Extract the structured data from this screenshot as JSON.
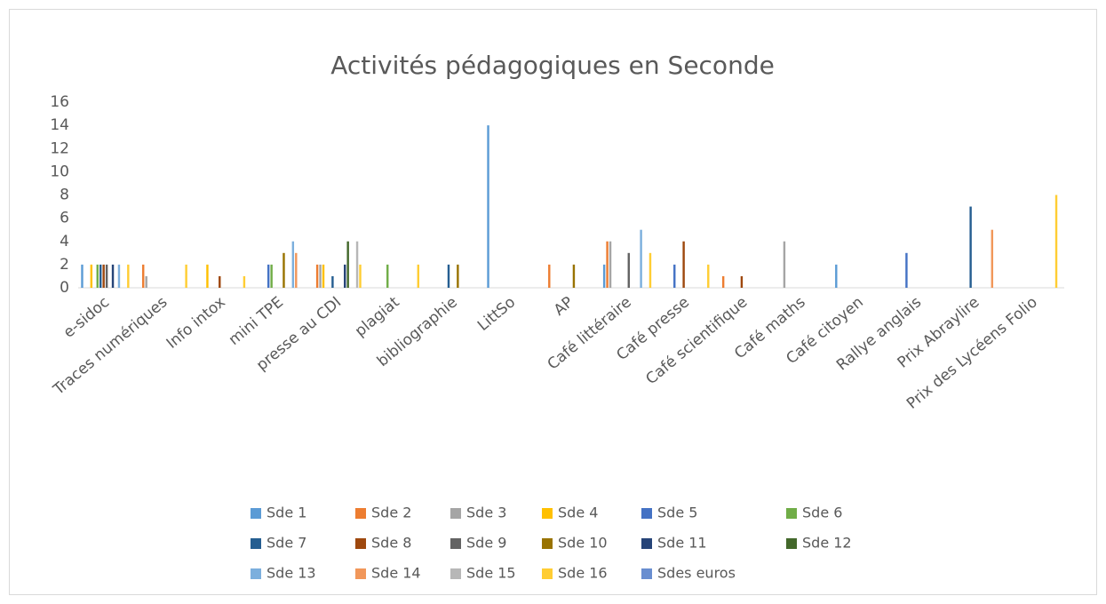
{
  "chart_data": {
    "type": "bar",
    "title": "Activités pédagogiques en Seconde",
    "categories": [
      "e-sidoc",
      "Traces numériques",
      "Info intox",
      "mini TPE",
      "presse au CDI",
      "plagiat",
      "bibliographie",
      "LittSo",
      "AP",
      "Café littéraire",
      "Café presse",
      "Café scientifique",
      "Café maths",
      "Café citoyen",
      "Rallye anglais",
      "Prix Abraylire",
      "Prix des Lycéens Folio"
    ],
    "ylim": [
      0,
      16
    ],
    "yticks": [
      0,
      2,
      4,
      6,
      8,
      10,
      12,
      14,
      16
    ],
    "grid": false,
    "legend": "bottom",
    "series": [
      {
        "name": "Sde 1",
        "color": "#5b9bd5",
        "values": [
          2,
          0,
          0,
          0,
          0,
          0,
          0,
          14,
          0,
          2,
          0,
          0,
          0,
          2,
          0,
          0,
          0
        ]
      },
      {
        "name": "Sde 2",
        "color": "#ed7d31",
        "values": [
          0,
          2,
          0,
          0,
          2,
          0,
          0,
          0,
          2,
          4,
          0,
          1,
          0,
          0,
          0,
          0,
          0
        ]
      },
      {
        "name": "Sde 3",
        "color": "#a5a5a5",
        "values": [
          0,
          1,
          0,
          0,
          2,
          0,
          0,
          0,
          0,
          4,
          0,
          0,
          4,
          0,
          0,
          0,
          0
        ]
      },
      {
        "name": "Sde 4",
        "color": "#ffc000",
        "values": [
          2,
          0,
          2,
          0,
          2,
          0,
          0,
          0,
          0,
          0,
          0,
          0,
          0,
          0,
          0,
          0,
          0
        ]
      },
      {
        "name": "Sde 5",
        "color": "#4472c4",
        "values": [
          0,
          0,
          0,
          2,
          0,
          0,
          0,
          0,
          0,
          0,
          2,
          0,
          0,
          0,
          3,
          0,
          0
        ]
      },
      {
        "name": "Sde 6",
        "color": "#70ad47",
        "values": [
          2,
          0,
          0,
          2,
          0,
          2,
          0,
          0,
          0,
          0,
          0,
          0,
          0,
          0,
          0,
          0,
          0
        ]
      },
      {
        "name": "Sde 7",
        "color": "#255e91",
        "values": [
          2,
          0,
          0,
          0,
          1,
          0,
          2,
          0,
          0,
          0,
          0,
          0,
          0,
          0,
          0,
          7,
          0
        ]
      },
      {
        "name": "Sde 8",
        "color": "#9e480e",
        "values": [
          2,
          0,
          1,
          0,
          0,
          0,
          0,
          0,
          0,
          0,
          4,
          1,
          0,
          0,
          0,
          0,
          0
        ]
      },
      {
        "name": "Sde 9",
        "color": "#636363",
        "values": [
          2,
          0,
          0,
          0,
          0,
          0,
          0,
          0,
          0,
          3,
          0,
          0,
          0,
          0,
          0,
          0,
          0
        ]
      },
      {
        "name": "Sde 10",
        "color": "#997300",
        "values": [
          0,
          0,
          0,
          3,
          0,
          0,
          2,
          0,
          2,
          0,
          0,
          0,
          0,
          0,
          0,
          0,
          0
        ]
      },
      {
        "name": "Sde 11",
        "color": "#264478",
        "values": [
          2,
          0,
          0,
          0,
          2,
          0,
          0,
          0,
          0,
          0,
          0,
          0,
          0,
          0,
          0,
          0,
          0
        ]
      },
      {
        "name": "Sde 12",
        "color": "#43682b",
        "values": [
          0,
          0,
          0,
          0,
          4,
          0,
          0,
          0,
          0,
          0,
          0,
          0,
          0,
          0,
          0,
          0,
          0
        ]
      },
      {
        "name": "Sde 13",
        "color": "#7cafdd",
        "values": [
          2,
          0,
          0,
          4,
          0,
          0,
          0,
          0,
          0,
          5,
          0,
          0,
          0,
          0,
          0,
          0,
          0
        ]
      },
      {
        "name": "Sde 14",
        "color": "#f1975a",
        "values": [
          0,
          0,
          0,
          3,
          0,
          0,
          0,
          0,
          0,
          0,
          0,
          0,
          0,
          0,
          0,
          5,
          0
        ]
      },
      {
        "name": "Sde 15",
        "color": "#b7b7b7",
        "values": [
          0,
          0,
          0,
          0,
          4,
          0,
          0,
          0,
          0,
          0,
          0,
          0,
          0,
          0,
          0,
          0,
          0
        ]
      },
      {
        "name": "Sde 16",
        "color": "#ffcd33",
        "values": [
          2,
          2,
          1,
          0,
          2,
          2,
          0,
          0,
          0,
          3,
          2,
          0,
          0,
          0,
          0,
          0,
          8
        ]
      },
      {
        "name": "Sdes euros",
        "color": "#698ed0",
        "values": [
          0,
          0,
          0,
          0,
          0,
          0,
          0,
          0,
          0,
          0,
          0,
          0,
          0,
          0,
          0,
          0,
          0
        ]
      }
    ]
  }
}
